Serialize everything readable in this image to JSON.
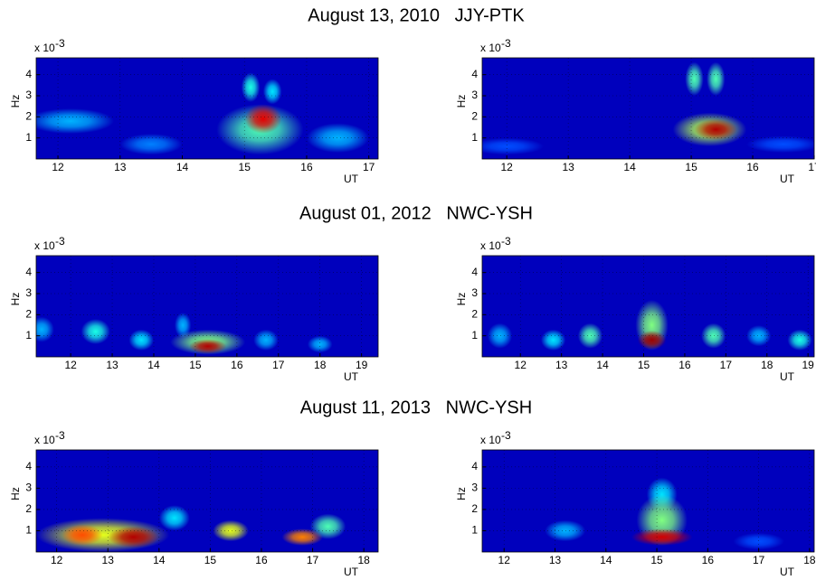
{
  "chart_data": [
    {
      "type": "heatmap",
      "title": "August 13, 2010   JJY-PTK",
      "y_label": "Hz",
      "y_multiplier": {
        "base": "x 10",
        "exponent": "-3"
      },
      "x_label": "UT",
      "xlim": [
        11.65,
        17.15
      ],
      "xticks": [
        12,
        13,
        14,
        15,
        16,
        17
      ],
      "ylim": [
        0,
        4.8
      ],
      "yticks": [
        1,
        2,
        3,
        4
      ],
      "grid": true,
      "blobs": [
        {
          "x": 12.2,
          "y": 1.8,
          "sx": 0.7,
          "sy": 0.6,
          "z": 0.3
        },
        {
          "x": 13.5,
          "y": 0.7,
          "sx": 0.5,
          "sy": 0.5,
          "z": 0.25
        },
        {
          "x": 16.5,
          "y": 1.0,
          "sx": 0.5,
          "sy": 0.7,
          "z": 0.3
        },
        {
          "x": 15.25,
          "y": 1.4,
          "sx": 0.7,
          "sy": 1.2,
          "z": 0.45
        },
        {
          "x": 15.1,
          "y": 3.4,
          "sx": 0.15,
          "sy": 0.7,
          "z": 0.4
        },
        {
          "x": 15.45,
          "y": 3.2,
          "sx": 0.15,
          "sy": 0.6,
          "z": 0.35
        },
        {
          "x": 15.3,
          "y": 1.9,
          "sx": 0.3,
          "sy": 0.7,
          "z": 0.9
        }
      ]
    },
    {
      "type": "heatmap",
      "y_label": "Hz",
      "y_multiplier": {
        "base": "x 10",
        "exponent": "-3"
      },
      "x_label": "UT",
      "xlim": [
        11.6,
        17.0
      ],
      "xticks": [
        12,
        13,
        14,
        15,
        16,
        17
      ],
      "ylim": [
        0,
        4.8
      ],
      "yticks": [
        1,
        2,
        3,
        4
      ],
      "grid": true,
      "blobs": [
        {
          "x": 12.0,
          "y": 0.6,
          "sx": 0.6,
          "sy": 0.4,
          "z": 0.2
        },
        {
          "x": 16.5,
          "y": 0.7,
          "sx": 0.6,
          "sy": 0.4,
          "z": 0.2
        },
        {
          "x": 15.3,
          "y": 1.4,
          "sx": 0.6,
          "sy": 0.8,
          "z": 0.55
        },
        {
          "x": 15.05,
          "y": 3.8,
          "sx": 0.15,
          "sy": 0.8,
          "z": 0.45
        },
        {
          "x": 15.4,
          "y": 3.8,
          "sx": 0.15,
          "sy": 0.8,
          "z": 0.45
        },
        {
          "x": 15.4,
          "y": 1.4,
          "sx": 0.35,
          "sy": 0.5,
          "z": 0.95
        }
      ]
    },
    {
      "type": "heatmap",
      "title": "August 01, 2012   NWC-YSH",
      "y_label": "Hz",
      "y_multiplier": {
        "base": "x 10",
        "exponent": "-3"
      },
      "x_label": "UT",
      "xlim": [
        11.17,
        19.4
      ],
      "xticks": [
        12,
        13,
        14,
        15,
        16,
        17,
        18,
        19
      ],
      "ylim": [
        0,
        4.8
      ],
      "yticks": [
        1,
        2,
        3,
        4
      ],
      "grid": true,
      "blobs": [
        {
          "x": 11.3,
          "y": 1.3,
          "sx": 0.3,
          "sy": 0.6,
          "z": 0.3
        },
        {
          "x": 12.6,
          "y": 1.2,
          "sx": 0.35,
          "sy": 0.6,
          "z": 0.4
        },
        {
          "x": 13.7,
          "y": 0.8,
          "sx": 0.3,
          "sy": 0.5,
          "z": 0.35
        },
        {
          "x": 14.7,
          "y": 1.5,
          "sx": 0.2,
          "sy": 0.6,
          "z": 0.3
        },
        {
          "x": 16.7,
          "y": 0.8,
          "sx": 0.3,
          "sy": 0.5,
          "z": 0.3
        },
        {
          "x": 18.0,
          "y": 0.6,
          "sx": 0.3,
          "sy": 0.4,
          "z": 0.3
        },
        {
          "x": 15.3,
          "y": 0.7,
          "sx": 0.9,
          "sy": 0.6,
          "z": 0.5
        },
        {
          "x": 15.3,
          "y": 0.5,
          "sx": 0.45,
          "sy": 0.35,
          "z": 0.95
        }
      ]
    },
    {
      "type": "heatmap",
      "y_label": "Hz",
      "y_multiplier": {
        "base": "x 10",
        "exponent": "-3"
      },
      "x_label": "UT",
      "xlim": [
        11.07,
        19.15
      ],
      "xticks": [
        12,
        13,
        14,
        15,
        16,
        17,
        18,
        19
      ],
      "ylim": [
        0,
        4.8
      ],
      "yticks": [
        1,
        2,
        3,
        4
      ],
      "grid": true,
      "blobs": [
        {
          "x": 11.5,
          "y": 1.0,
          "sx": 0.3,
          "sy": 0.6,
          "z": 0.3
        },
        {
          "x": 12.8,
          "y": 0.8,
          "sx": 0.3,
          "sy": 0.5,
          "z": 0.35
        },
        {
          "x": 13.7,
          "y": 1.0,
          "sx": 0.3,
          "sy": 0.6,
          "z": 0.45
        },
        {
          "x": 16.7,
          "y": 1.0,
          "sx": 0.3,
          "sy": 0.6,
          "z": 0.45
        },
        {
          "x": 17.8,
          "y": 1.0,
          "sx": 0.3,
          "sy": 0.5,
          "z": 0.3
        },
        {
          "x": 18.8,
          "y": 0.8,
          "sx": 0.3,
          "sy": 0.5,
          "z": 0.4
        },
        {
          "x": 15.2,
          "y": 1.5,
          "sx": 0.4,
          "sy": 1.2,
          "z": 0.5
        },
        {
          "x": 15.2,
          "y": 0.8,
          "sx": 0.35,
          "sy": 0.45,
          "z": 0.97
        }
      ]
    },
    {
      "type": "heatmap",
      "title": "August 11, 2013   NWC-YSH",
      "y_label": "Hz",
      "y_multiplier": {
        "base": "x 10",
        "exponent": "-3"
      },
      "x_label": "UT",
      "xlim": [
        11.6,
        18.28
      ],
      "xticks": [
        12,
        13,
        14,
        15,
        16,
        17,
        18
      ],
      "ylim": [
        0,
        4.8
      ],
      "yticks": [
        1,
        2,
        3,
        4
      ],
      "grid": true,
      "blobs": [
        {
          "x": 12.9,
          "y": 0.8,
          "sx": 1.3,
          "sy": 0.8,
          "z": 0.6
        },
        {
          "x": 14.3,
          "y": 1.6,
          "sx": 0.3,
          "sy": 0.6,
          "z": 0.35
        },
        {
          "x": 15.4,
          "y": 1.0,
          "sx": 0.35,
          "sy": 0.5,
          "z": 0.6
        },
        {
          "x": 17.3,
          "y": 1.2,
          "sx": 0.35,
          "sy": 0.6,
          "z": 0.45
        },
        {
          "x": 16.8,
          "y": 0.7,
          "sx": 0.4,
          "sy": 0.4,
          "z": 0.75
        },
        {
          "x": 12.5,
          "y": 0.8,
          "sx": 0.4,
          "sy": 0.5,
          "z": 0.8
        },
        {
          "x": 13.5,
          "y": 0.7,
          "sx": 0.5,
          "sy": 0.5,
          "z": 0.95
        }
      ]
    },
    {
      "type": "heatmap",
      "y_label": "Hz",
      "y_multiplier": {
        "base": "x 10",
        "exponent": "-3"
      },
      "x_label": "UT",
      "xlim": [
        11.57,
        18.09
      ],
      "xticks": [
        12,
        13,
        14,
        15,
        16,
        17,
        18
      ],
      "ylim": [
        0,
        4.8
      ],
      "yticks": [
        1,
        2,
        3,
        4
      ],
      "grid": true,
      "blobs": [
        {
          "x": 13.2,
          "y": 1.0,
          "sx": 0.4,
          "sy": 0.5,
          "z": 0.3
        },
        {
          "x": 17.0,
          "y": 0.5,
          "sx": 0.5,
          "sy": 0.4,
          "z": 0.2
        },
        {
          "x": 15.1,
          "y": 2.7,
          "sx": 0.3,
          "sy": 0.8,
          "z": 0.35
        },
        {
          "x": 15.1,
          "y": 1.5,
          "sx": 0.5,
          "sy": 1.2,
          "z": 0.5
        },
        {
          "x": 15.1,
          "y": 0.7,
          "sx": 0.6,
          "sy": 0.4,
          "z": 0.92
        }
      ]
    }
  ]
}
